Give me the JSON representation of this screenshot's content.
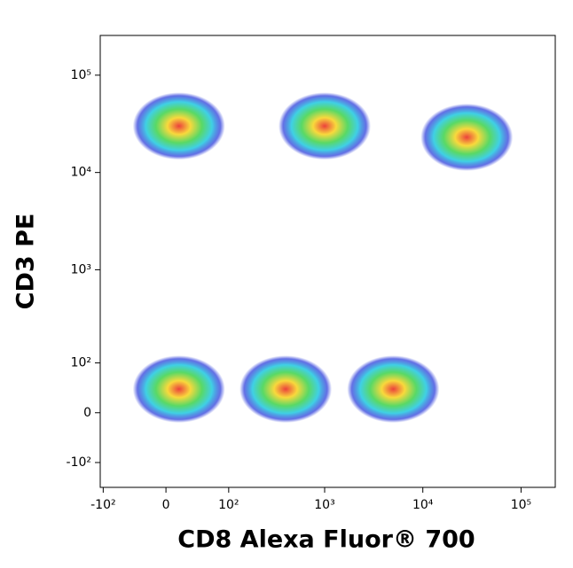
{
  "chart_data": {
    "type": "density",
    "x_label": "CD8 Alexa Fluor® 700",
    "y_label": "CD3 PE",
    "xscale": "biexponential",
    "yscale": "biexponential",
    "xlim": [
      -108,
      223000
    ],
    "ylim": [
      -193,
      256000
    ],
    "xticks": [
      {
        "value": -100,
        "label": "-10²"
      },
      0,
      {
        "value": 100,
        "label": "10²"
      },
      {
        "value": 1000,
        "label": "10³"
      },
      {
        "value": 10000,
        "label": "10⁴"
      },
      {
        "value": 100000,
        "label": "10⁵"
      }
    ],
    "yticks": [
      {
        "value": 100000,
        "label": "10⁵"
      },
      {
        "value": 10000,
        "label": "10⁴"
      },
      {
        "value": 1000,
        "label": "10³"
      },
      {
        "value": 100,
        "label": "10²"
      },
      0,
      {
        "value": -100,
        "label": "-10²"
      }
    ],
    "x": [
      15,
      1000,
      28000,
      15,
      400,
      5000
    ],
    "y": [
      30000,
      30000,
      23000,
      40,
      40,
      40
    ]
  }
}
